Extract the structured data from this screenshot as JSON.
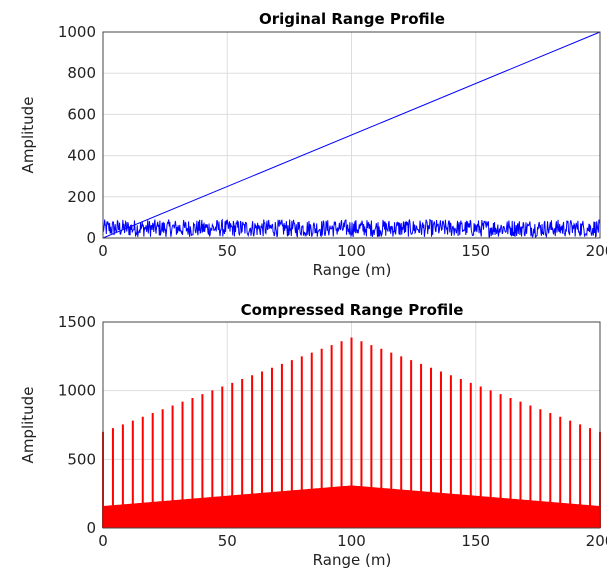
{
  "chart_data": [
    {
      "type": "line",
      "title": "Original Range Profile",
      "xlabel": "Range (m)",
      "ylabel": "Amplitude",
      "xlim": [
        0,
        200
      ],
      "ylim": [
        0,
        1000
      ],
      "xticks": [
        "0",
        "50",
        "100",
        "150",
        "200"
      ],
      "yticks": [
        "0",
        "200",
        "400",
        "600",
        "800",
        "1000"
      ],
      "grid": true,
      "series": [
        {
          "color": "#0000ff",
          "style": "linear",
          "x": [
            0,
            200
          ],
          "y": [
            0,
            1000
          ]
        },
        {
          "color": "#0000ff",
          "style": "noise",
          "x": [
            0,
            200
          ],
          "y_range": [
            5,
            90
          ]
        }
      ]
    },
    {
      "type": "line",
      "title": "Compressed Range Profile",
      "xlabel": "Range (m)",
      "ylabel": "Amplitude",
      "xlim": [
        0,
        200
      ],
      "ylim": [
        0,
        1500
      ],
      "xticks": [
        "0",
        "50",
        "100",
        "150",
        "200"
      ],
      "yticks": [
        "0",
        "500",
        "1000",
        "1500"
      ],
      "grid": true,
      "series": [
        {
          "color": "#ff0000",
          "style": "spikes",
          "x": [
            0,
            4,
            8,
            12,
            16,
            20,
            24,
            28,
            32,
            36,
            40,
            44,
            48,
            52,
            56,
            60,
            64,
            68,
            72,
            76,
            80,
            84,
            88,
            92,
            96,
            100,
            104,
            108,
            112,
            116,
            120,
            124,
            128,
            132,
            136,
            140,
            144,
            148,
            152,
            156,
            160,
            164,
            168,
            172,
            176,
            180,
            184,
            188,
            192,
            196,
            200
          ],
          "peak": [
            700,
            727,
            755,
            782,
            810,
            837,
            865,
            892,
            920,
            947,
            975,
            1002,
            1030,
            1057,
            1085,
            1112,
            1140,
            1167,
            1195,
            1222,
            1250,
            1277,
            1305,
            1332,
            1360,
            1387,
            1360,
            1332,
            1305,
            1277,
            1250,
            1222,
            1195,
            1167,
            1140,
            1112,
            1085,
            1057,
            1030,
            1002,
            975,
            947,
            920,
            892,
            865,
            837,
            810,
            782,
            755,
            727,
            700
          ],
          "floor_edge": 160,
          "floor_center": 310
        }
      ]
    }
  ]
}
